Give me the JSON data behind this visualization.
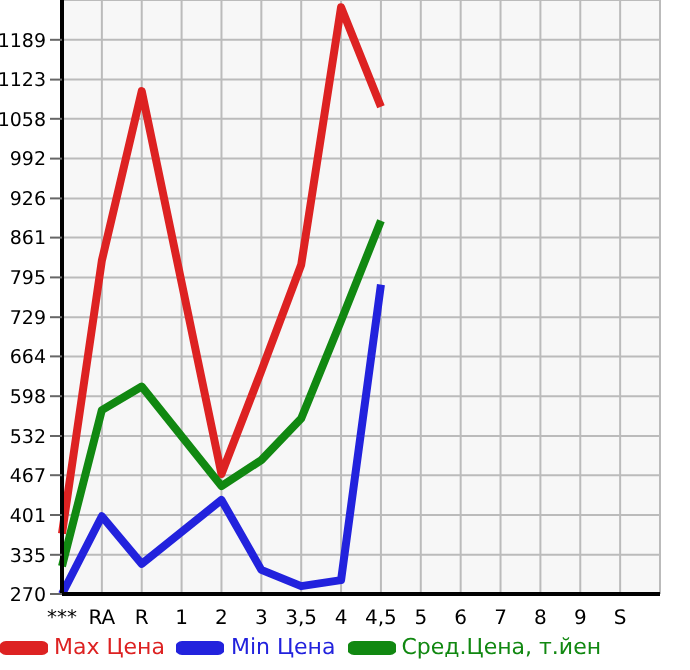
{
  "chart_data": {
    "type": "line",
    "categories": [
      "***",
      "RA",
      "R",
      "1",
      "2",
      "3",
      "3,5",
      "4",
      "4,5",
      "5",
      "6",
      "7",
      "8",
      "9",
      "S",
      null
    ],
    "series": [
      {
        "name": "Max Цена",
        "color": "#dd2222",
        "values": [
          370,
          823,
          1104,
          null,
          469,
          640,
          816,
          1243,
          1078,
          null,
          null,
          null,
          null,
          null,
          null,
          null
        ]
      },
      {
        "name": "Min Цена",
        "color": "#2222dd",
        "values": [
          270,
          399,
          320,
          null,
          426,
          310,
          283,
          293,
          783,
          null,
          null,
          null,
          null,
          null,
          null,
          null
        ]
      },
      {
        "name": "Сред.Цена, т.йен",
        "color": "#118811",
        "values": [
          316,
          575,
          614,
          null,
          449,
          492,
          561,
          723,
          889,
          null,
          null,
          null,
          null,
          null,
          null,
          null
        ]
      }
    ],
    "ylim": [
      270,
      1255
    ],
    "yticks": [
      270,
      335,
      401,
      467,
      532,
      598,
      664,
      729,
      795,
      861,
      926,
      992,
      1058,
      1123,
      1189
    ],
    "grid": true,
    "legend": "bottom",
    "marker": "none",
    "line_style": "solid"
  }
}
